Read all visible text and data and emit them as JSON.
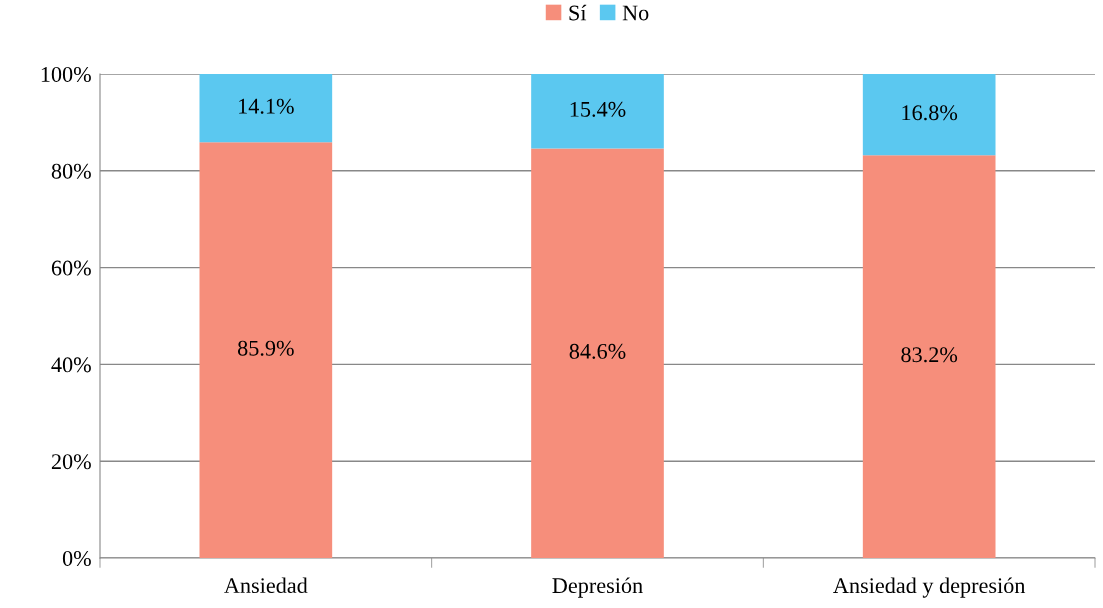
{
  "chart_data": {
    "type": "bar",
    "stacked": true,
    "categories": [
      "Ansiedad",
      "Depresión",
      "Ansiedad y depresión"
    ],
    "series": [
      {
        "name": "Sí",
        "color": "#f68e7b",
        "values": [
          85.9,
          84.6,
          83.2
        ],
        "value_labels": [
          "85.9%",
          "84.6%",
          "83.2%"
        ]
      },
      {
        "name": "No",
        "color": "#5bc8f0",
        "values": [
          14.1,
          15.4,
          16.8
        ],
        "value_labels": [
          "14.1%",
          "15.4%",
          "16.8%"
        ]
      }
    ],
    "ylim": [
      0,
      100
    ],
    "yticks": [
      {
        "value": 0,
        "label": "0%"
      },
      {
        "value": 20,
        "label": "20%"
      },
      {
        "value": 40,
        "label": "40%"
      },
      {
        "value": 60,
        "label": "60%"
      },
      {
        "value": 80,
        "label": "80%"
      },
      {
        "value": 100,
        "label": "100%"
      }
    ],
    "grid": "y",
    "legend": "top"
  }
}
